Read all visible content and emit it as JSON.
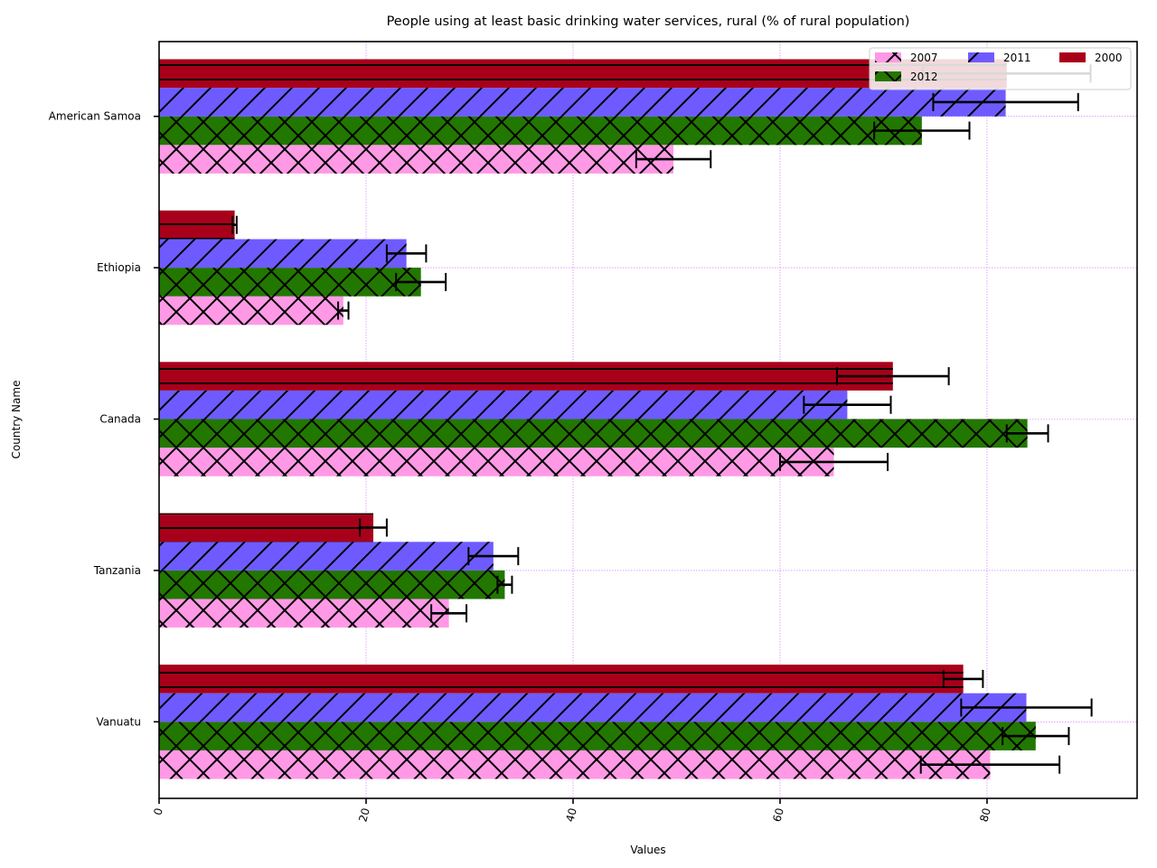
{
  "chart_data": {
    "type": "bar",
    "orientation": "horizontal",
    "title": "People using at least basic drinking water services, rural (% of rural population)",
    "xlabel": "Values",
    "ylabel": "Country Name",
    "categories": [
      "American Samoa",
      "Ethiopia",
      "Canada",
      "Tanzania",
      "Vanuatu"
    ],
    "xlim": [
      0,
      94.5
    ],
    "xticks": [
      0,
      20,
      40,
      60,
      80
    ],
    "grid": true,
    "legend_position": "top-right",
    "series": [
      {
        "name": "2007",
        "color": "#ff99e6",
        "hatch": "cross",
        "values": [
          49.7,
          17.8,
          65.2,
          28.0,
          80.3
        ],
        "errors": [
          3.6,
          0.5,
          5.2,
          1.7,
          6.7
        ]
      },
      {
        "name": "2012",
        "color": "#227700",
        "hatch": "cross",
        "values": [
          73.7,
          25.3,
          83.9,
          33.4,
          84.7
        ],
        "errors": [
          4.6,
          2.4,
          2.0,
          0.7,
          3.2
        ]
      },
      {
        "name": "2011",
        "color": "#6e5bff",
        "hatch": "diagonal",
        "values": [
          81.8,
          23.9,
          66.5,
          32.3,
          83.8
        ],
        "errors": [
          7.0,
          1.9,
          4.2,
          2.4,
          6.3
        ]
      },
      {
        "name": "2000",
        "color": "#a8001a",
        "hatch": "horizontal",
        "values": [
          81.9,
          7.3,
          70.9,
          20.7,
          77.7
        ],
        "errors": [
          8.1,
          0.2,
          5.4,
          1.3,
          1.9
        ]
      }
    ],
    "legend_order": [
      "2007",
      "2011",
      "2000",
      "2012"
    ]
  }
}
